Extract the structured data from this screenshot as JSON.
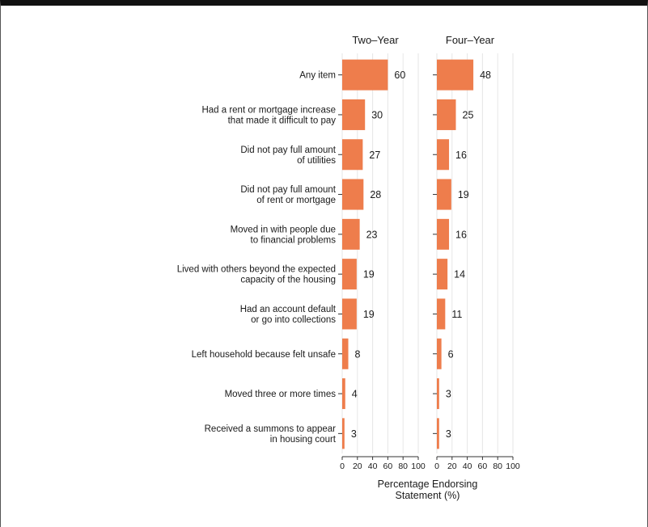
{
  "chart_data": {
    "type": "bar",
    "orientation": "horizontal",
    "categories": [
      [
        "Any item"
      ],
      [
        "Had a rent or mortgage increase",
        "that made it difficult to pay"
      ],
      [
        "Did not pay full amount",
        "of utilities"
      ],
      [
        "Did not pay full amount",
        "of rent or mortgage"
      ],
      [
        "Moved in with people due",
        "to financial problems"
      ],
      [
        "Lived with others beyond the expected",
        "capacity of the housing"
      ],
      [
        "Had an account default",
        "or go into collections"
      ],
      [
        "Left household because felt unsafe"
      ],
      [
        "Moved three or more times"
      ],
      [
        "Received a summons to appear",
        "in housing court"
      ]
    ],
    "series": [
      {
        "name": "Two–Year",
        "values": [
          60,
          30,
          27,
          28,
          23,
          19,
          19,
          8,
          4,
          3
        ]
      },
      {
        "name": "Four–Year",
        "values": [
          48,
          25,
          16,
          19,
          16,
          14,
          11,
          6,
          3,
          3
        ]
      }
    ],
    "xlim": [
      0,
      100
    ],
    "xticks": [
      0,
      20,
      40,
      60,
      80,
      100
    ],
    "xlabel": [
      "Percentage Endorsing",
      "Statement (%)"
    ],
    "bar_color": "#ee7d4c",
    "grid": true
  }
}
